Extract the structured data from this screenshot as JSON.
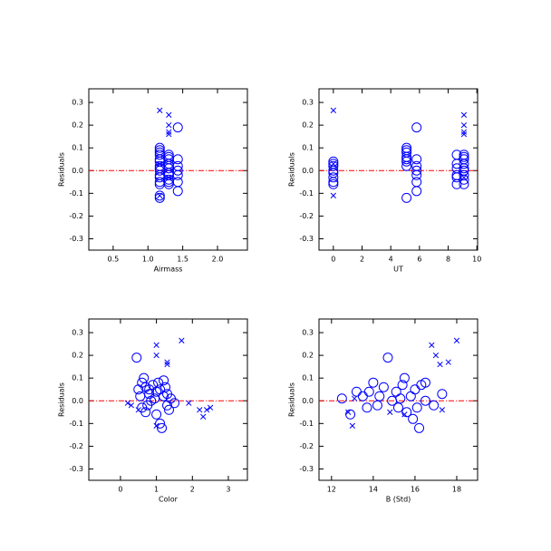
{
  "chart_data": [
    {
      "type": "scatter",
      "xlabel": "Airmass",
      "ylabel": "Residuals",
      "xlim": [
        0.15,
        2.43
      ],
      "ylim": [
        -0.35,
        0.36
      ],
      "xticks": [
        0.5,
        {
          "value": 1,
          "label": "1.0"
        },
        1.5,
        {
          "value": 2,
          "label": "2.0"
        }
      ],
      "yticks": [
        0.3,
        0.2,
        0.1,
        {
          "value": 0,
          "label": "0.0"
        },
        -0.1,
        -0.2,
        -0.3
      ],
      "reference_line": 0,
      "reference_color": "#ff0000",
      "series": [
        {
          "marker": "circle",
          "color": "#0000ff",
          "x": [
            1.17,
            1.17,
            1.17,
            1.17,
            1.17,
            1.17,
            1.17,
            1.17,
            1.17,
            1.17,
            1.17,
            1.17,
            1.17,
            1.17,
            1.17,
            1.3,
            1.3,
            1.3,
            1.3,
            1.3,
            1.3,
            1.3,
            1.3,
            1.3,
            1.3,
            1.3,
            1.43,
            1.43,
            1.43,
            1.43,
            1.43,
            1.43,
            1.43
          ],
          "values": [
            0.1,
            0.09,
            0.08,
            0.07,
            0.05,
            0.04,
            0.02,
            0.01,
            0,
            -0.02,
            -0.03,
            -0.05,
            -0.06,
            -0.12,
            -0.11,
            0.07,
            0.06,
            0.05,
            0.03,
            0.02,
            0.01,
            -0.01,
            -0.02,
            -0.04,
            -0.05,
            -0.06,
            0.19,
            0.05,
            0.02,
            0,
            -0.02,
            -0.05,
            -0.09
          ]
        },
        {
          "marker": "x",
          "color": "#0000ff",
          "x": [
            1.17,
            1.17,
            1.3,
            1.3,
            1.3,
            1.3,
            1.17,
            1.3
          ],
          "values": [
            0.265,
            -0.11,
            0.245,
            0.2,
            0.17,
            0.16,
            0.03,
            -0.03
          ]
        }
      ]
    },
    {
      "type": "scatter",
      "xlabel": "UT",
      "ylabel": "Residuals",
      "xlim": [
        -1,
        10.05
      ],
      "ylim": [
        -0.35,
        0.36
      ],
      "xticks": [
        0,
        2,
        4,
        6,
        8,
        10
      ],
      "yticks": [
        0.3,
        0.2,
        0.1,
        {
          "value": 0,
          "label": "0.0"
        },
        -0.1,
        -0.2,
        -0.3
      ],
      "reference_line": 0,
      "reference_color": "#ff0000",
      "series": [
        {
          "marker": "circle",
          "color": "#0000ff",
          "x": [
            0,
            0,
            0,
            0,
            0,
            0,
            0,
            0,
            5.1,
            5.1,
            5.1,
            5.1,
            5.1,
            5.1,
            5.1,
            5.1,
            5.8,
            5.8,
            5.8,
            5.8,
            5.8,
            5.8,
            5.8,
            8.6,
            8.6,
            8.6,
            8.6,
            8.6,
            8.6,
            9.1,
            9.1,
            9.1,
            9.1,
            9.1,
            9.1,
            9.1,
            9.1,
            9.1
          ],
          "values": [
            0.04,
            0.03,
            0.02,
            0,
            -0.01,
            -0.03,
            -0.05,
            -0.06,
            0.1,
            0.09,
            0.08,
            0.06,
            0.05,
            0.04,
            0.02,
            -0.12,
            0.19,
            0.05,
            0.02,
            0,
            -0.02,
            -0.05,
            -0.09,
            0.07,
            0.03,
            0.01,
            -0.02,
            -0.03,
            -0.06,
            0.07,
            0.06,
            0.05,
            0.03,
            0.01,
            0,
            -0.02,
            -0.04,
            -0.06
          ]
        },
        {
          "marker": "x",
          "color": "#0000ff",
          "x": [
            0,
            0,
            0,
            9.1,
            9.1,
            9.1,
            9.1,
            9.1
          ],
          "values": [
            0.265,
            -0.11,
            0.03,
            0.245,
            0.2,
            0.17,
            0.16,
            -0.03
          ]
        }
      ]
    },
    {
      "type": "scatter",
      "xlabel": "Color",
      "ylabel": "Residuals",
      "xlim": [
        -0.88,
        3.53
      ],
      "ylim": [
        -0.35,
        0.36
      ],
      "xticks": [
        0,
        1,
        2,
        3
      ],
      "yticks": [
        0.3,
        0.2,
        0.1,
        {
          "value": 0,
          "label": "0.0"
        },
        -0.1,
        -0.2,
        -0.3
      ],
      "reference_line": 0,
      "reference_color": "#ff0000",
      "series": [
        {
          "marker": "circle",
          "color": "#0000ff",
          "x": [
            0.45,
            0.5,
            0.55,
            0.6,
            0.65,
            0.7,
            0.75,
            0.8,
            0.85,
            0.6,
            0.7,
            0.9,
            1.0,
            1.05,
            1.1,
            1.15,
            1.2,
            1.25,
            1.3,
            1.35,
            1.4,
            1.5,
            0.95,
            1.0,
            1.1,
            1.2,
            0.8,
            1.3
          ],
          "values": [
            0.19,
            0.05,
            0.02,
            0.08,
            0.1,
            0.06,
            -0.02,
            0.03,
            0,
            -0.03,
            -0.05,
            0.07,
            0.04,
            0.08,
            -0.1,
            -0.12,
            0.02,
            0.06,
            -0.02,
            -0.04,
            0.01,
            -0.01,
            0.01,
            -0.06,
            0.05,
            0.09,
            0.05,
            0.03
          ]
        },
        {
          "marker": "x",
          "color": "#0000ff",
          "x": [
            0.2,
            0.3,
            1.0,
            1.0,
            1.3,
            1.3,
            1.7,
            1.9,
            2.2,
            2.3,
            2.4,
            2.5,
            1.0,
            0.5
          ],
          "values": [
            -0.01,
            -0.02,
            0.245,
            0.2,
            0.17,
            0.16,
            0.265,
            -0.01,
            -0.04,
            -0.07,
            -0.04,
            -0.03,
            -0.11,
            -0.04
          ]
        }
      ]
    },
    {
      "type": "scatter",
      "xlabel": "B (Std)",
      "ylabel": "Residuals",
      "xlim": [
        11.4,
        19.0
      ],
      "ylim": [
        -0.35,
        0.36
      ],
      "xticks": [
        12,
        14,
        16,
        18
      ],
      "yticks": [
        0.3,
        0.2,
        0.1,
        {
          "value": 0,
          "label": "0.0"
        },
        -0.1,
        -0.2,
        -0.3
      ],
      "reference_line": 0,
      "reference_color": "#ff0000",
      "series": [
        {
          "marker": "circle",
          "color": "#0000ff",
          "x": [
            12.5,
            12.9,
            13.2,
            13.5,
            13.7,
            14.0,
            14.2,
            14.5,
            14.7,
            14.9,
            15.1,
            15.2,
            15.4,
            15.5,
            15.6,
            15.8,
            15.9,
            16.0,
            16.2,
            16.3,
            16.5,
            16.5,
            16.9,
            17.3,
            15.3,
            14.3,
            13.8,
            16.1
          ],
          "values": [
            0.01,
            -0.06,
            0.04,
            0.02,
            -0.03,
            0.08,
            -0.02,
            0.06,
            0.19,
            0,
            0.04,
            -0.03,
            0.07,
            0.1,
            -0.05,
            0.02,
            -0.08,
            0.05,
            -0.12,
            0.07,
            0,
            0.08,
            -0.02,
            0.03,
            0.01,
            0.02,
            0.04,
            -0.03
          ]
        },
        {
          "marker": "x",
          "color": "#0000ff",
          "x": [
            12.8,
            13.0,
            14.8,
            15.5,
            16.8,
            17.0,
            17.2,
            17.6,
            18.0,
            17.3,
            13.1
          ],
          "values": [
            -0.05,
            -0.11,
            -0.05,
            -0.06,
            0.245,
            0.2,
            0.16,
            0.17,
            0.265,
            -0.04,
            0.01
          ]
        }
      ]
    }
  ]
}
